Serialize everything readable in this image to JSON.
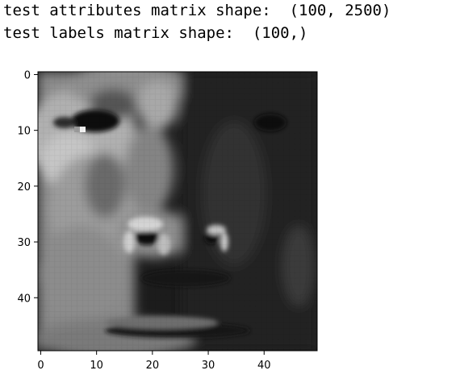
{
  "output": {
    "line1": "test attributes matrix shape:  (100, 2500)",
    "line2": "test labels matrix shape:  (100,)"
  },
  "chart_data": {
    "type": "heatmap",
    "colormap": "gray",
    "content": "grayscale face image",
    "x_ticks": [
      "0",
      "10",
      "20",
      "30",
      "40"
    ],
    "y_ticks": [
      "0",
      "10",
      "20",
      "30",
      "40"
    ],
    "xlim": [
      -0.5,
      49.5
    ],
    "ylim": [
      49.5,
      -0.5
    ],
    "grid_rows": 50,
    "grid_cols": 50
  }
}
